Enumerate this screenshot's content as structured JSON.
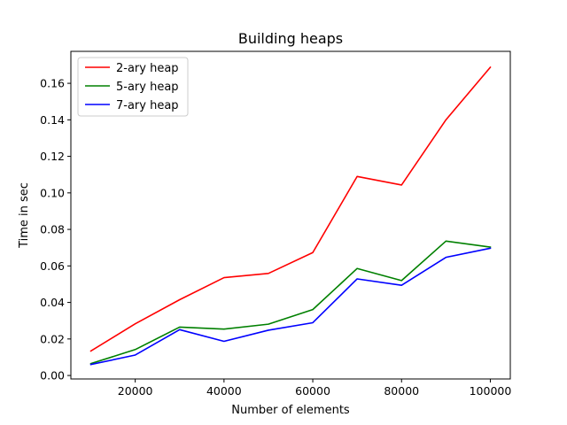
{
  "chart_data": {
    "type": "line",
    "title": "Building heaps",
    "xlabel": "Number of elements",
    "ylabel": "Time in sec",
    "x": [
      10000,
      20000,
      30000,
      40000,
      50000,
      60000,
      70000,
      80000,
      90000,
      100000
    ],
    "xticks": [
      20000,
      40000,
      60000,
      80000,
      100000
    ],
    "xtick_labels": [
      "20000",
      "40000",
      "60000",
      "80000",
      "100000"
    ],
    "yticks": [
      0.0,
      0.02,
      0.04,
      0.06,
      0.08,
      0.1,
      0.12,
      0.14,
      0.16
    ],
    "ytick_labels": [
      "0.00",
      "0.02",
      "0.04",
      "0.06",
      "0.08",
      "0.10",
      "0.12",
      "0.14",
      "0.16"
    ],
    "xlim": [
      5500,
      104500
    ],
    "ylim": [
      -0.0019,
      0.1775
    ],
    "grid": false,
    "legend_position": "top-left",
    "series": [
      {
        "name": "2-ary heap",
        "color": "#ff0000",
        "values": [
          0.0134,
          0.0283,
          0.0415,
          0.0536,
          0.0559,
          0.0673,
          0.109,
          0.1043,
          0.14,
          0.1688
        ]
      },
      {
        "name": "5-ary heap",
        "color": "#008000",
        "values": [
          0.0065,
          0.0142,
          0.0265,
          0.0254,
          0.0281,
          0.0361,
          0.0586,
          0.052,
          0.0736,
          0.0703
        ]
      },
      {
        "name": "7-ary heap",
        "color": "#0000ff",
        "values": [
          0.006,
          0.0112,
          0.0251,
          0.0187,
          0.0248,
          0.0289,
          0.0529,
          0.0494,
          0.0647,
          0.0697
        ]
      }
    ]
  }
}
